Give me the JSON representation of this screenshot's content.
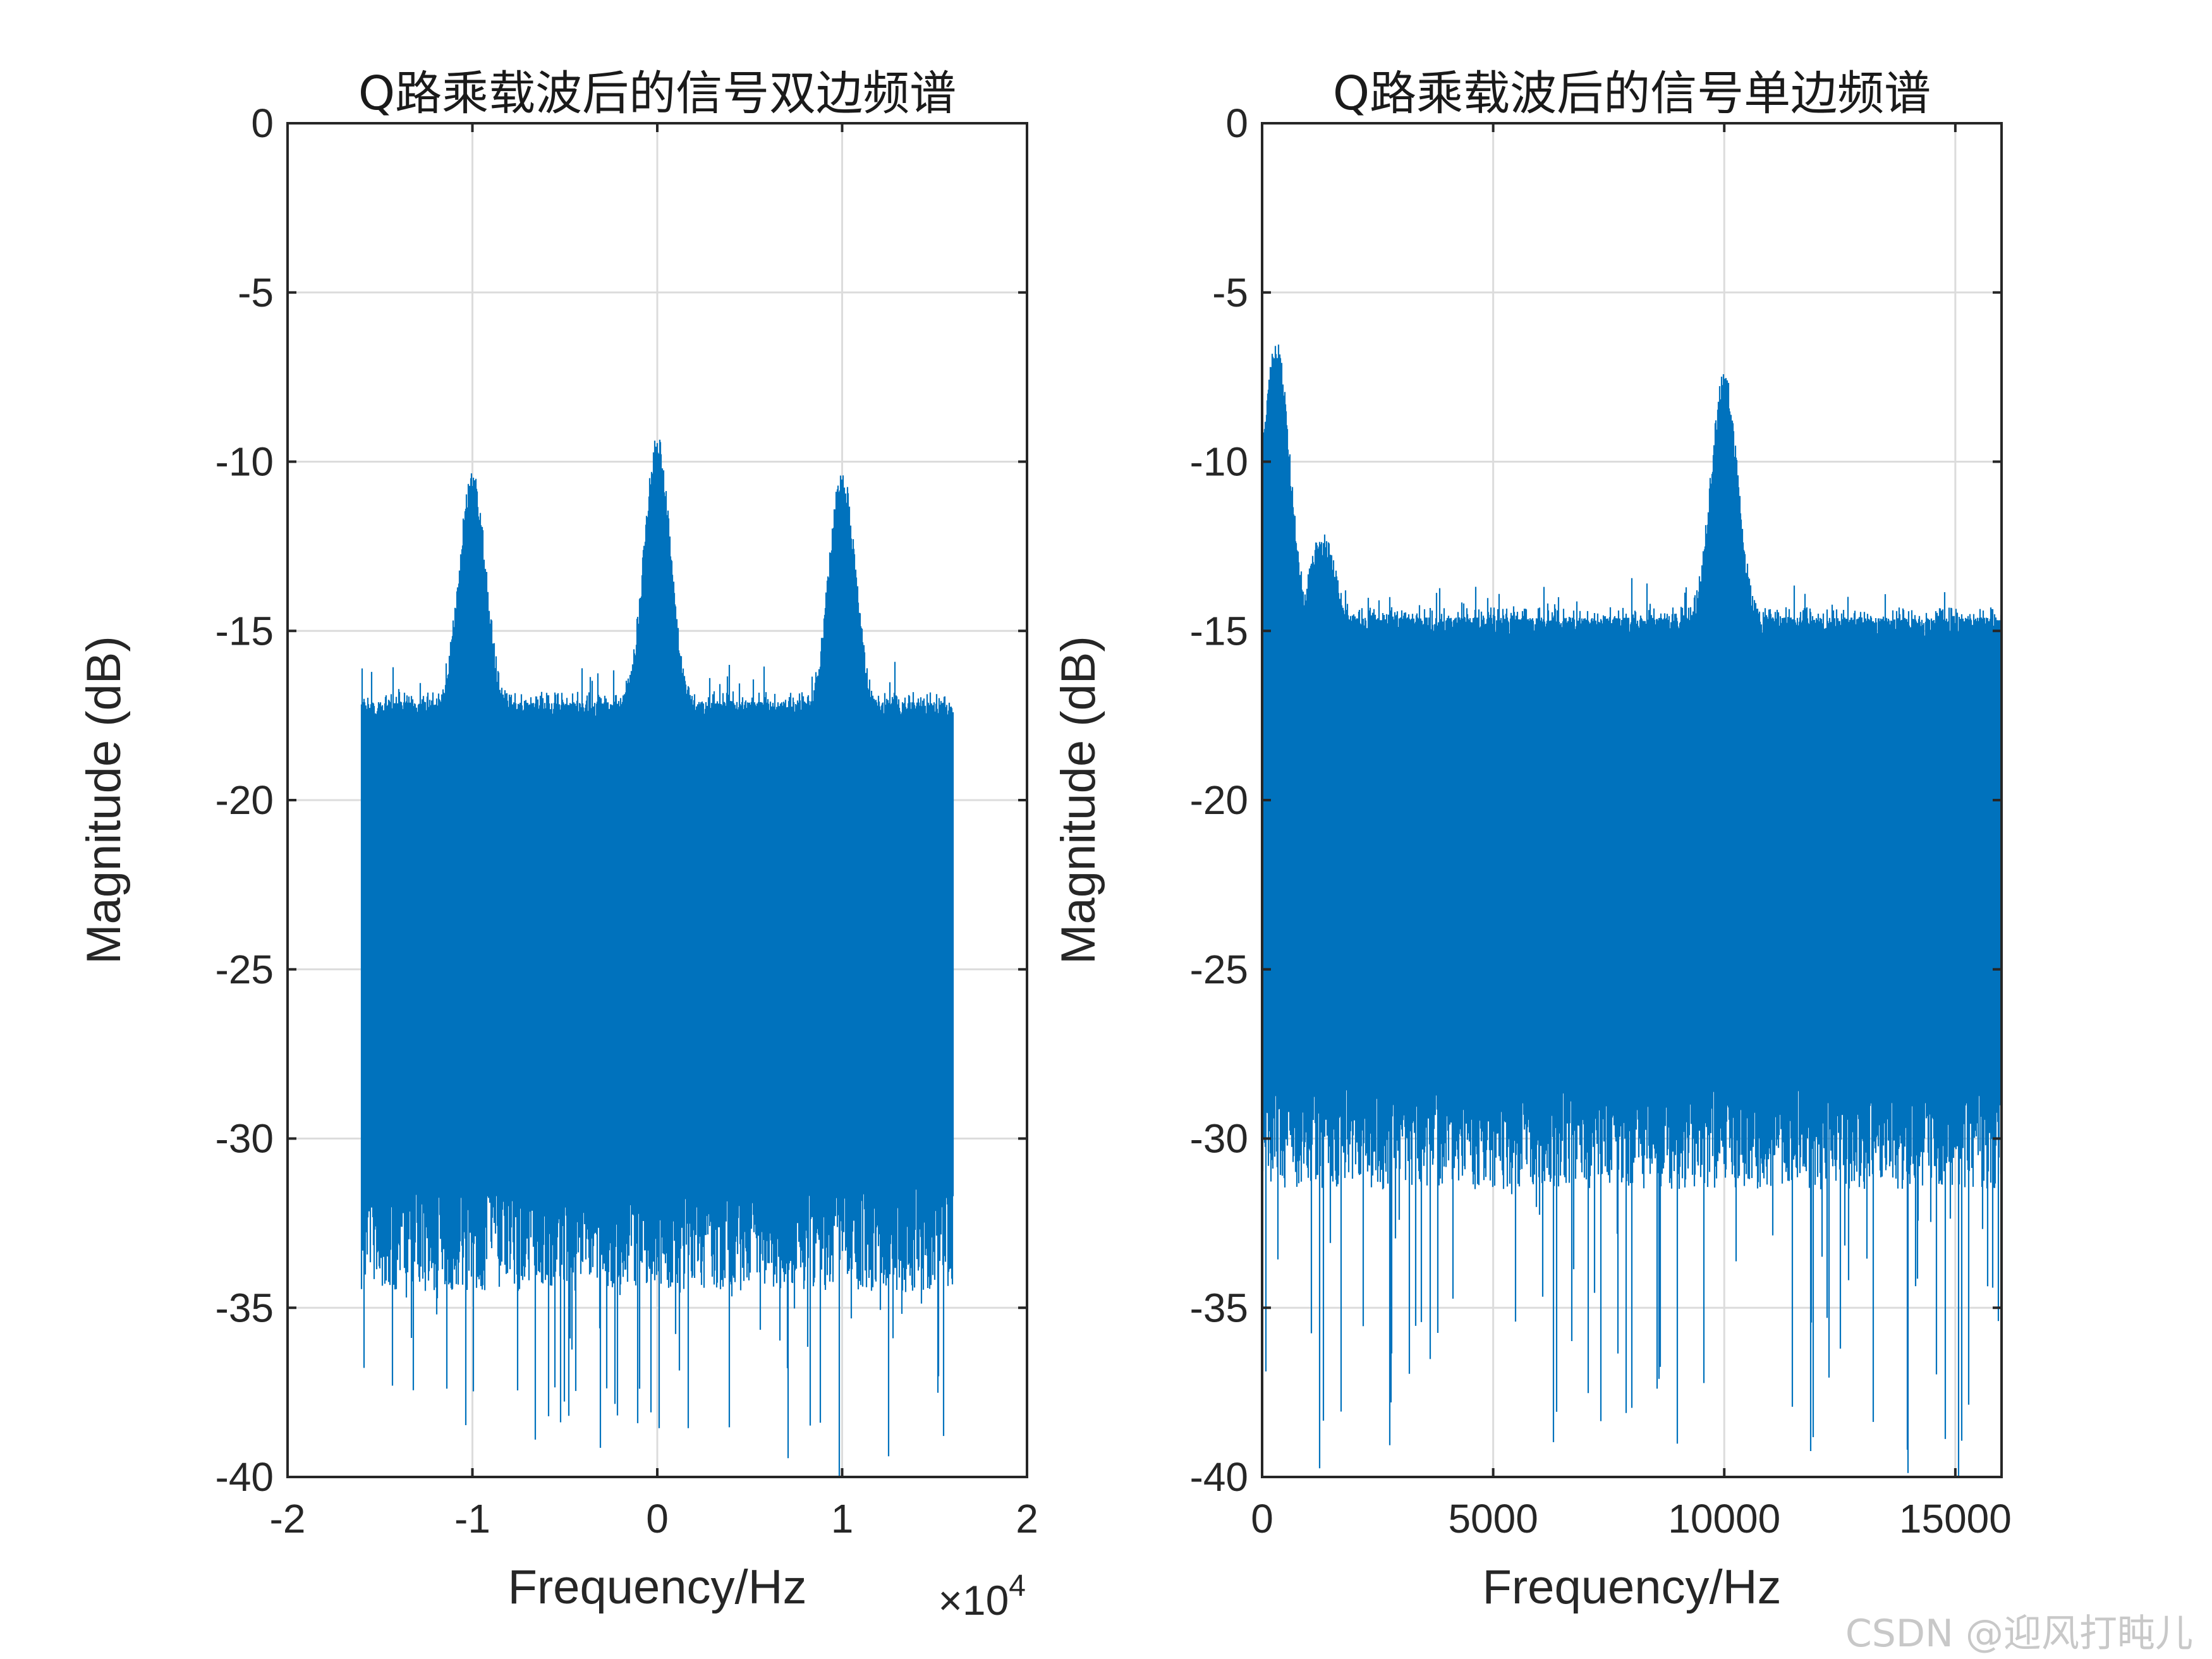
{
  "chart_data": [
    {
      "type": "line",
      "title": "Q路乘载波后的信号双边频谱",
      "xlabel": "Frequency/Hz",
      "ylabel": "Magnitude (dB)",
      "x_exponent_label": "×10",
      "x_exponent_power": "4",
      "xlim": [
        -20000,
        20000
      ],
      "ylim": [
        -40,
        0
      ],
      "x_ticks": [
        -20000,
        -10000,
        0,
        10000,
        20000
      ],
      "x_tick_labels": [
        "-2",
        "-1",
        "0",
        "1",
        "2"
      ],
      "y_ticks": [
        0,
        -5,
        -10,
        -15,
        -20,
        -25,
        -30,
        -35,
        -40
      ],
      "y_tick_labels": [
        "0",
        "-5",
        "-10",
        "-15",
        "-20",
        "-25",
        "-30",
        "-35",
        "-40"
      ],
      "grid": true,
      "line_color": "#0072BD",
      "series": [
        {
          "x_range": [
            -16000,
            16000
          ],
          "noise_floor_top_db": -17.5,
          "noise_floor_bottom_db": -33,
          "deep_dip_min_db": -40,
          "peaks": [
            {
              "x": -10000,
              "y": -10.6
            },
            {
              "x": 0,
              "y": -9.6
            },
            {
              "x": 10000,
              "y": -10.6
            }
          ]
        }
      ]
    },
    {
      "type": "line",
      "title": "Q路乘载波后的信号单边频谱",
      "xlabel": "Frequency/Hz",
      "ylabel": "Magnitude (dB)",
      "xlim": [
        0,
        16000
      ],
      "ylim": [
        -40,
        0
      ],
      "x_ticks": [
        0,
        5000,
        10000,
        15000
      ],
      "x_tick_labels": [
        "0",
        "5000",
        "10000",
        "15000"
      ],
      "y_ticks": [
        0,
        -5,
        -10,
        -15,
        -20,
        -25,
        -30,
        -35,
        -40
      ],
      "y_tick_labels": [
        "0",
        "-5",
        "-10",
        "-15",
        "-20",
        "-25",
        "-30",
        "-35",
        "-40"
      ],
      "grid": true,
      "line_color": "#0072BD",
      "series": [
        {
          "x_range": [
            0,
            16000
          ],
          "noise_floor_top_db": -15,
          "noise_floor_bottom_db": -30,
          "deep_dip_min_db": -40,
          "peaks": [
            {
              "x": 300,
              "y": -6.6
            },
            {
              "x": 1300,
              "y": -12.5
            },
            {
              "x": 10000,
              "y": -7.7
            }
          ]
        }
      ]
    }
  ],
  "watermark": "CSDN @迎风打盹儿"
}
